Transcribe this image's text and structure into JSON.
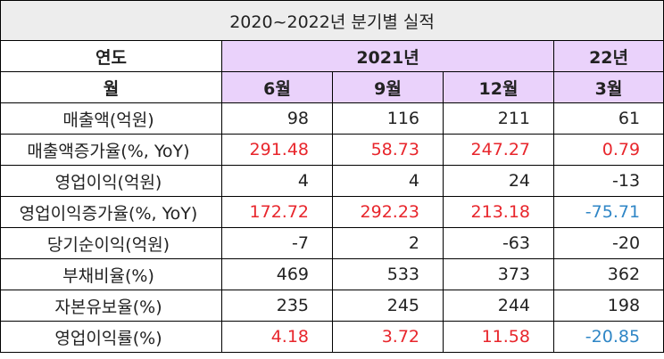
{
  "title": "2020~2022년 분기별 실적",
  "header": {
    "year_label": "연도",
    "month_label": "월",
    "year_2021": "2021년",
    "year_22": "22년",
    "months": [
      "6월",
      "9월",
      "12월",
      "3월"
    ]
  },
  "rows": [
    {
      "label": "매출액(억원)",
      "values": [
        "98",
        "116",
        "211",
        "61"
      ],
      "colors": [
        "",
        "",
        "",
        ""
      ]
    },
    {
      "label": "매출액증가율(%, YoY)",
      "values": [
        "291.48",
        "58.73",
        "247.27",
        "0.79"
      ],
      "colors": [
        "red",
        "red",
        "red",
        "red"
      ]
    },
    {
      "label": "영업이익(억원)",
      "values": [
        "4",
        "4",
        "24",
        "-13"
      ],
      "colors": [
        "",
        "",
        "",
        ""
      ]
    },
    {
      "label": "영업이익증가율(%, YoY)",
      "values": [
        "172.72",
        "292.23",
        "213.18",
        "-75.71"
      ],
      "colors": [
        "red",
        "red",
        "red",
        "blue"
      ]
    },
    {
      "label": "당기순이익(억원)",
      "values": [
        "-7",
        "2",
        "-63",
        "-20"
      ],
      "colors": [
        "",
        "",
        "",
        ""
      ]
    },
    {
      "label": "부채비율(%)",
      "values": [
        "469",
        "533",
        "373",
        "362"
      ],
      "colors": [
        "",
        "",
        "",
        ""
      ]
    },
    {
      "label": "자본유보율(%)",
      "values": [
        "235",
        "245",
        "244",
        "198"
      ],
      "colors": [
        "",
        "",
        "",
        ""
      ]
    },
    {
      "label": "영업이익률(%)",
      "values": [
        "4.18",
        "3.72",
        "11.58",
        "-20.85"
      ],
      "colors": [
        "red",
        "red",
        "red",
        "blue"
      ]
    }
  ]
}
